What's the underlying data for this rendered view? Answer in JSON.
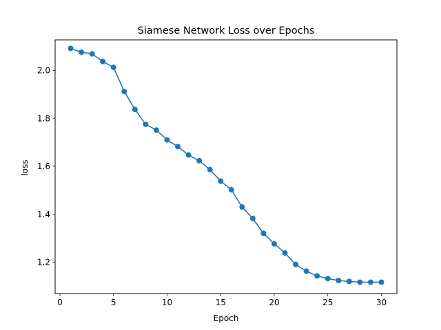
{
  "chart_data": {
    "type": "line",
    "title": "Siamese Network Loss over Epochs",
    "xlabel": "Epoch",
    "ylabel": "loss",
    "xlim": [
      -0.45,
      31.45
    ],
    "ylim": [
      1.0685,
      2.1275
    ],
    "xticks": [
      0,
      5,
      10,
      15,
      20,
      25,
      30
    ],
    "yticks": [
      1.2,
      1.4,
      1.6,
      1.8,
      2.0
    ],
    "xtick_labels": [
      "0",
      "5",
      "10",
      "15",
      "20",
      "25",
      "30"
    ],
    "ytick_labels": [
      "1.2",
      "1.4",
      "1.6",
      "1.8",
      "2.0"
    ],
    "grid": false,
    "series": [
      {
        "color": "#1f77b4",
        "marker": "circle",
        "x": [
          1,
          2,
          3,
          4,
          5,
          6,
          7,
          8,
          9,
          10,
          11,
          12,
          13,
          14,
          15,
          16,
          17,
          18,
          19,
          20,
          21,
          22,
          23,
          24,
          25,
          26,
          27,
          28,
          29,
          30
        ],
        "y": [
          2.092,
          2.076,
          2.069,
          2.037,
          2.013,
          1.912,
          1.837,
          1.775,
          1.751,
          1.71,
          1.682,
          1.647,
          1.623,
          1.586,
          1.538,
          1.502,
          1.43,
          1.382,
          1.32,
          1.276,
          1.238,
          1.19,
          1.162,
          1.142,
          1.131,
          1.123,
          1.119,
          1.116,
          1.116,
          1.116
        ]
      }
    ]
  }
}
